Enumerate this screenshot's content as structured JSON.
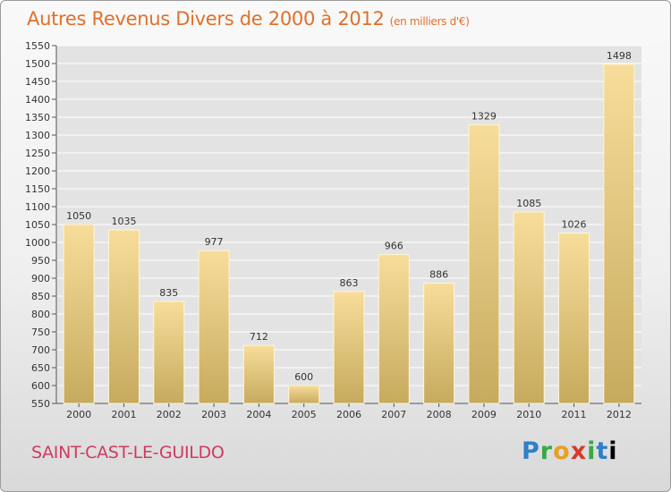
{
  "header": {
    "title": "Autres Revenus Divers de 2000 à 2012",
    "subtitle": "(en milliers d'€)"
  },
  "footer": {
    "town": "SAINT-CAST-LE-GUILDO",
    "logo_text": "Proxiti"
  },
  "colors": {
    "title": "#e0702a",
    "town": "#cf3b60",
    "bar_light": "#f7dd9a",
    "bar_dark": "#c8ad62",
    "grid": "#ffffff",
    "plot_bg": "#e3e3e3"
  },
  "chart_data": {
    "type": "bar",
    "title": "Autres Revenus Divers de 2000 à 2012",
    "subtitle": "(en milliers d'€)",
    "categories": [
      "2000",
      "2001",
      "2002",
      "2003",
      "2004",
      "2005",
      "2006",
      "2007",
      "2008",
      "2009",
      "2010",
      "2011",
      "2012"
    ],
    "values": [
      1050,
      1035,
      835,
      977,
      712,
      600,
      863,
      966,
      886,
      1329,
      1085,
      1026,
      1498
    ],
    "ylim": [
      550,
      1550
    ],
    "ytick_step": 50,
    "grid": true,
    "data_labels": true
  }
}
